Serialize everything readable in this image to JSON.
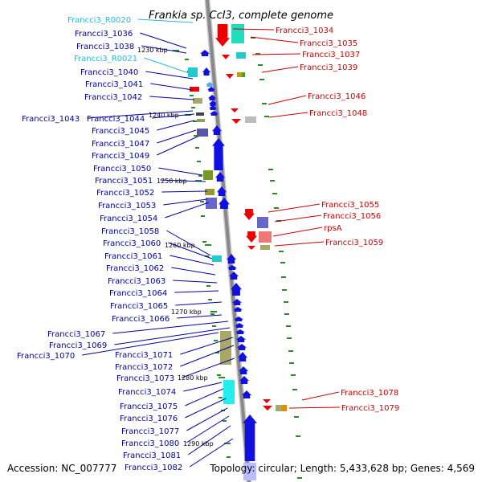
{
  "title": "Frankia sp. CcI3, complete genome",
  "accession": "Accession: NC_007777",
  "summary": "Topology: circular; Length: 5,433,628 bp; Genes: 4,569",
  "colors": {
    "left_gene": "#0000a0",
    "left_rna": "#29b8d8",
    "right_gene": "#cc0000",
    "tick": "#2a8a2a",
    "backbone": "#888888"
  },
  "scale_marks": [
    "1230 kbp",
    "1240 kbp",
    "1250 kbp",
    "1260 kbp",
    "1270 kbp",
    "1280 kbp",
    "1290 kbp"
  ],
  "left_labels": [
    {
      "text": "Francci3_R0020",
      "rna": true
    },
    {
      "text": "Francci3_1036"
    },
    {
      "text": "Francci3_1038"
    },
    {
      "text": "Francci3_R0021",
      "rna": true
    },
    {
      "text": "Francci3_1040"
    },
    {
      "text": "Francci3_1041"
    },
    {
      "text": "Francci3_1042"
    },
    {
      "text": "Francci3_1043"
    },
    {
      "text": "Francci3_1044"
    },
    {
      "text": "Francci3_1045"
    },
    {
      "text": "Francci3_1047"
    },
    {
      "text": "Francci3_1049"
    },
    {
      "text": "Francci3_1050"
    },
    {
      "text": "Francci3_1051"
    },
    {
      "text": "Francci3_1052"
    },
    {
      "text": "Francci3_1053"
    },
    {
      "text": "Francci3_1054"
    },
    {
      "text": "Francci3_1058"
    },
    {
      "text": "Francci3_1060"
    },
    {
      "text": "Francci3_1061"
    },
    {
      "text": "Francci3_1062"
    },
    {
      "text": "Francci3_1063"
    },
    {
      "text": "Francci3_1064"
    },
    {
      "text": "Francci3_1065"
    },
    {
      "text": "Francci3_1066"
    },
    {
      "text": "Francci3_1067"
    },
    {
      "text": "Francci3_1069"
    },
    {
      "text": "Francci3_1070"
    },
    {
      "text": "Francci3_1071"
    },
    {
      "text": "Francci3_1072"
    },
    {
      "text": "Francci3_1073"
    },
    {
      "text": "Francci3_1074"
    },
    {
      "text": "Francci3_1075"
    },
    {
      "text": "Francci3_1076"
    },
    {
      "text": "Francci3_1077"
    },
    {
      "text": "Francci3_1080"
    },
    {
      "text": "Francci3_1081"
    },
    {
      "text": "Francci3_1082"
    }
  ],
  "right_labels": [
    {
      "text": "Francci3_1034"
    },
    {
      "text": "Francci3_1035"
    },
    {
      "text": "Francci3_1037"
    },
    {
      "text": "Francci3_1039"
    },
    {
      "text": "Francci3_1046"
    },
    {
      "text": "Francci3_1048"
    },
    {
      "text": "Francci3_1055"
    },
    {
      "text": "Francci3_1056"
    },
    {
      "text": "rpsA"
    },
    {
      "text": "Francci3_1059"
    },
    {
      "text": "Francci3_1078"
    },
    {
      "text": "Francci3_1079"
    }
  ]
}
